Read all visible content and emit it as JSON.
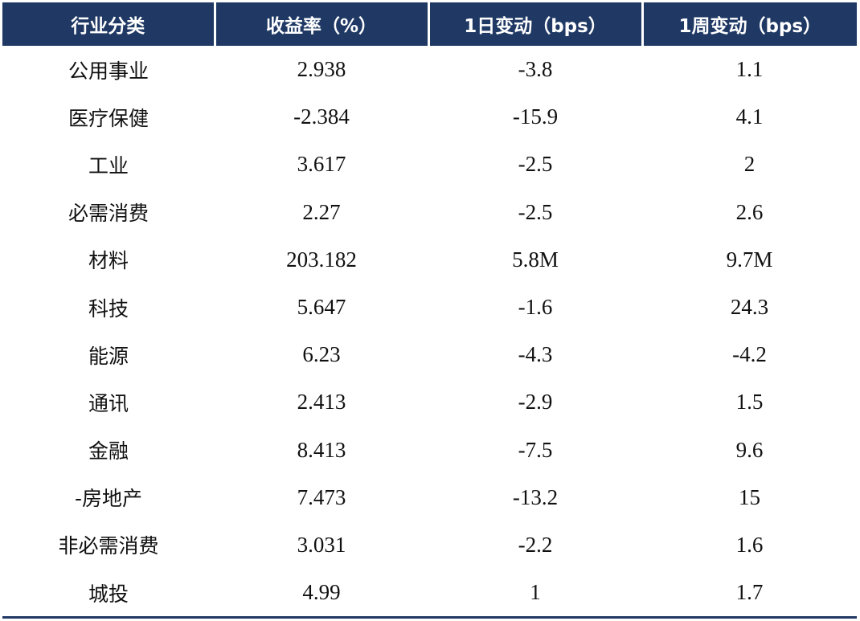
{
  "chart_data": {
    "type": "table",
    "columns": [
      "行业分类",
      "收益率（%）",
      "1日变动（bps）",
      "1周变动（bps）"
    ],
    "rows": [
      [
        "公用事业",
        "2.938",
        "-3.8",
        "1.1"
      ],
      [
        "医疗保健",
        "-2.384",
        "-15.9",
        "4.1"
      ],
      [
        "工业",
        "3.617",
        "-2.5",
        "2"
      ],
      [
        "必需消费",
        "2.27",
        "-2.5",
        "2.6"
      ],
      [
        "材料",
        "203.182",
        "5.8M",
        "9.7M"
      ],
      [
        "科技",
        "5.647",
        "-1.6",
        "24.3"
      ],
      [
        "能源",
        "6.23",
        "-4.3",
        "-4.2"
      ],
      [
        "通讯",
        "2.413",
        "-2.9",
        "1.5"
      ],
      [
        "金融",
        "8.413",
        "-7.5",
        "9.6"
      ],
      [
        "-房地产",
        "7.473",
        "-13.2",
        "15"
      ],
      [
        "非必需消费",
        "3.031",
        "-2.2",
        "1.6"
      ],
      [
        "城投",
        "4.99",
        "1",
        "1.7"
      ]
    ],
    "colors": {
      "header_bg": "#1f3864",
      "header_text": "#ffffff",
      "rule": "#1f3864"
    }
  }
}
